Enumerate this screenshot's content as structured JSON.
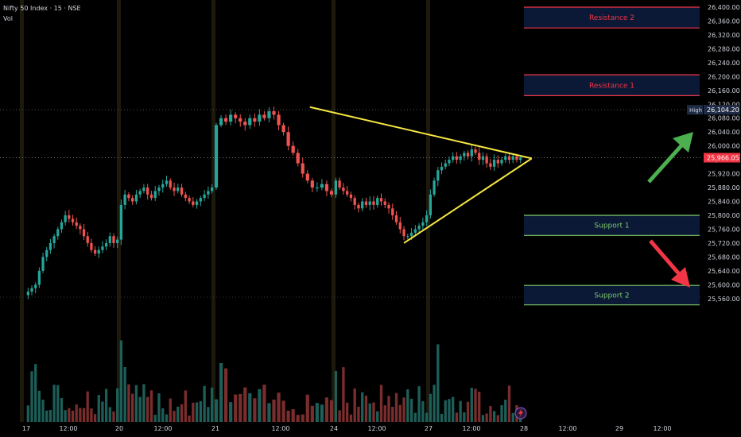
{
  "header": {
    "title": "Nifty 50 Index · 15 · NSE",
    "sublabel": "Vol"
  },
  "chart_data": {
    "type": "candlestick",
    "title": "Nifty 50 Index · 15 · NSE",
    "ylabel": "",
    "xlabel": "",
    "ylim": [
      25540,
      26420
    ],
    "y_ticks": [
      26400,
      26360,
      26320,
      26280,
      26240,
      26200,
      26160,
      26120,
      26080,
      26040,
      26000,
      25960,
      25920,
      25880,
      25840,
      25800,
      25760,
      25720,
      25680,
      25640,
      25600,
      25560
    ],
    "y_tick_labels": [
      "26,400.00",
      "26,360.00",
      "26,320.00",
      "26,280.00",
      "26,240.00",
      "26,200.00",
      "26,160.00",
      "26,120.00",
      "26,080.00",
      "26,040.00",
      "26,000.00",
      "25,960.00",
      "25,920.00",
      "25,880.00",
      "25,840.00",
      "25,800.00",
      "25,760.00",
      "25,720.00",
      "25,680.00",
      "25,640.00",
      "25,600.00",
      "25,560.00"
    ],
    "x_tick_labels": [
      "17",
      "12:00",
      "20",
      "12:00",
      "21",
      "12:00",
      "24",
      "12:00",
      "27",
      "12:00",
      "28",
      "12:00",
      "29",
      "12:00"
    ],
    "price_markers": {
      "high": {
        "label": "High",
        "value": 26104.2,
        "text": "26,104.20"
      },
      "last": {
        "value": 25966.05,
        "text": "25,966.05"
      }
    },
    "zones": [
      {
        "label": "Resistance 2",
        "top": 26400,
        "bottom": 26340,
        "kind": "resistance"
      },
      {
        "label": "Resistance 1",
        "top": 26205,
        "bottom": 26145,
        "kind": "resistance"
      },
      {
        "label": "Support 1",
        "top": 25800,
        "bottom": 25742,
        "kind": "support"
      },
      {
        "label": "Support 2",
        "top": 25598,
        "bottom": 25542,
        "kind": "support"
      }
    ],
    "triangle": {
      "upper_line": [
        {
          "session": 2.8,
          "price": 26112
        },
        {
          "session": 5.1,
          "price": 25964
        }
      ],
      "lower_line": [
        {
          "session": 3.74,
          "price": 25720
        },
        {
          "session": 5.1,
          "price": 25964
        }
      ]
    },
    "arrows": [
      {
        "direction": "up",
        "color": "#4caf50"
      },
      {
        "direction": "down",
        "color": "#f23645"
      }
    ],
    "sessions": [
      {
        "day": "17",
        "closes": [
          25580,
          25590,
          25600,
          25640,
          25680,
          25700,
          25720,
          25740,
          25760,
          25780,
          25800,
          25790,
          25780,
          25770,
          25760,
          25740,
          25720,
          25700,
          25690,
          25700,
          25710,
          25720,
          25740,
          25720,
          25730
        ]
      },
      {
        "day": "20",
        "closes": [
          25830,
          25860,
          25850,
          25840,
          25860,
          25870,
          25880,
          25860,
          25850,
          25870,
          25880,
          25890,
          25900,
          25880,
          25870,
          25880,
          25860,
          25850,
          25840,
          25830,
          25840,
          25850,
          25860,
          25870,
          25880
        ]
      },
      {
        "day": "21",
        "closes": [
          26060,
          26080,
          26070,
          26090,
          26080,
          26070,
          26060,
          26080,
          26070,
          26090,
          26080,
          26100,
          26090,
          26060,
          26040,
          26000,
          25980,
          25950,
          25920,
          25900,
          25880,
          25880,
          25890,
          25870,
          25860
        ]
      },
      {
        "day": "24",
        "closes": [
          25900,
          25880,
          25870,
          25860,
          25850,
          25830,
          25820,
          25840,
          25830,
          25840,
          25830,
          25850,
          25840,
          25830,
          25820,
          25800,
          25780,
          25760,
          25740,
          25740,
          25750,
          25760,
          25770,
          25780,
          25800
        ]
      },
      {
        "day": "27",
        "closes": [
          25860,
          25900,
          25930,
          25940,
          25950,
          25960,
          25970,
          25960,
          25970,
          25980,
          25970,
          25990,
          25980,
          25960,
          25970,
          25950,
          25940,
          25960,
          25950,
          25960,
          25970,
          25960,
          25970,
          25960,
          25966
        ]
      }
    ]
  }
}
